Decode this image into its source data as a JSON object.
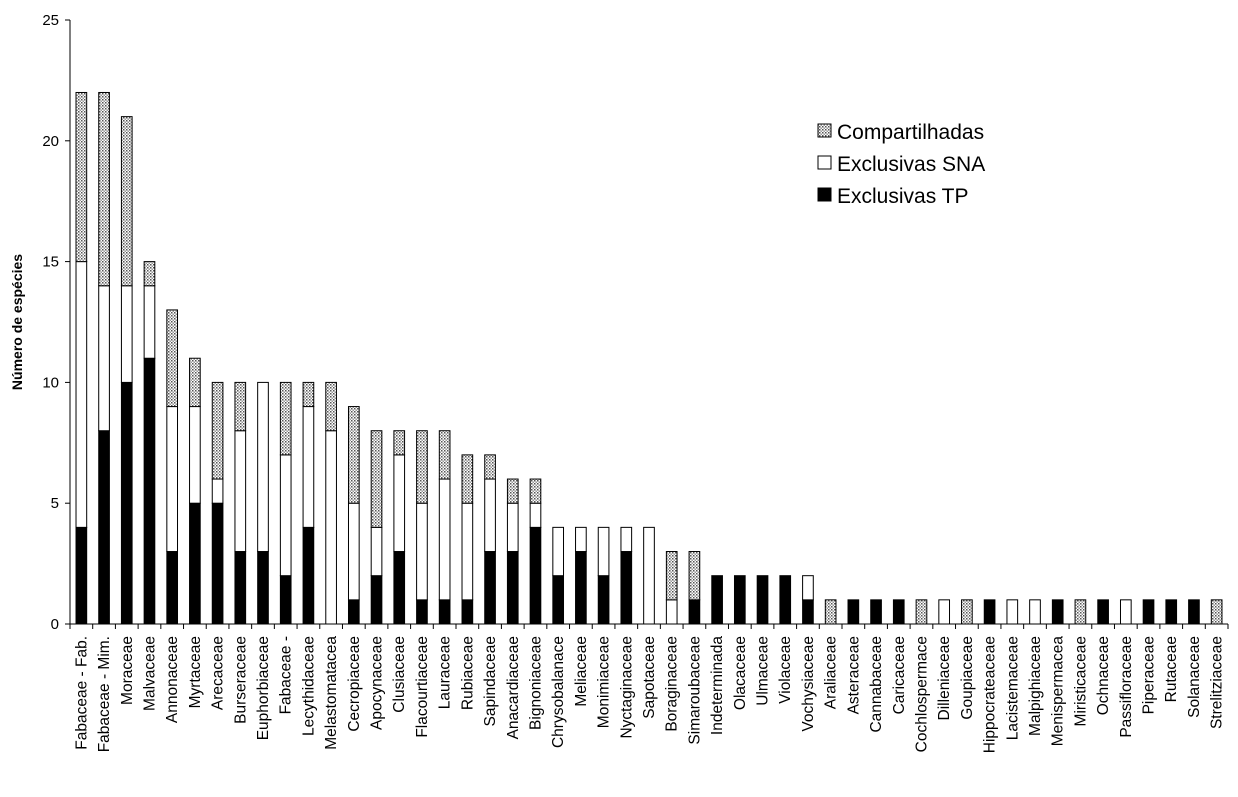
{
  "chart_data": {
    "type": "bar",
    "stacked": true,
    "ylabel": "Número de espécies",
    "xlabel": "",
    "ylim": [
      0,
      25
    ],
    "yticks": [
      0,
      5,
      10,
      15,
      20,
      25
    ],
    "legend_position": "top-right",
    "categories": [
      "Fabaceae - Fab.",
      "Fabaceae - Mim.",
      "Moraceae",
      "Malvaceae",
      "Annonaceae",
      "Myrtaceae",
      "Arecaceae",
      "Burseraceae",
      "Euphorbiaceae",
      "Fabaceae -",
      "Lecythidaceae",
      "Melastomatacea",
      "Cecropiaceae",
      "Apocynaceae",
      "Clusiaceae",
      "Flacourtiaceae",
      "Lauraceae",
      "Rubiaceae",
      "Sapindaceae",
      "Anacardiaceae",
      "Bignoniaceae",
      "Chrysobalanace",
      "Meliaceae",
      "Monimiaceae",
      "Nyctaginaceae",
      "Sapotaceae",
      "Boraginaceae",
      "Simaroubaceae",
      "Indeterminada",
      "Olacaceae",
      "Ulmaceae",
      "Violaceae",
      "Vochysiaceae",
      "Araliaceae",
      "Asteraceae",
      "Cannabaceae",
      "Caricaceae",
      "Cochlospermace",
      "Dilleniaceae",
      "Goupiaceae",
      "Hippocrateaceae",
      "Lacistemaceae",
      "Malpighiaceae",
      "Menispermacea",
      "Miristicaceae",
      "Ochnaceae",
      "Passifloraceae",
      "Piperaceae",
      "Rutaceae",
      "Solanaceae",
      "Strelitziaceae"
    ],
    "series": [
      {
        "name": "Exclusivas TP",
        "color": "#000000",
        "pattern": "solid",
        "values": [
          4,
          8,
          10,
          11,
          3,
          5,
          5,
          3,
          3,
          2,
          4,
          0,
          1,
          2,
          3,
          1,
          1,
          1,
          3,
          3,
          4,
          2,
          3,
          2,
          3,
          0,
          0,
          1,
          2,
          2,
          2,
          2,
          1,
          0,
          1,
          1,
          1,
          0,
          0,
          0,
          1,
          0,
          0,
          1,
          0,
          1,
          0,
          1,
          1,
          1,
          0
        ]
      },
      {
        "name": "Exclusivas SNA",
        "color": "#ffffff",
        "pattern": "none",
        "values": [
          11,
          6,
          4,
          3,
          6,
          4,
          1,
          5,
          7,
          5,
          5,
          8,
          4,
          2,
          4,
          4,
          5,
          4,
          3,
          2,
          1,
          2,
          1,
          2,
          1,
          4,
          1,
          0,
          0,
          0,
          0,
          0,
          1,
          0,
          0,
          0,
          0,
          0,
          1,
          0,
          0,
          1,
          1,
          0,
          0,
          0,
          1,
          0,
          0,
          0,
          0
        ]
      },
      {
        "name": "Compartilhadas",
        "color": "#bdbdbd",
        "pattern": "dotted",
        "values": [
          7,
          8,
          7,
          1,
          4,
          2,
          4,
          2,
          0,
          3,
          1,
          2,
          4,
          4,
          1,
          3,
          2,
          2,
          1,
          1,
          1,
          0,
          0,
          0,
          0,
          0,
          2,
          2,
          0,
          0,
          0,
          0,
          0,
          1,
          0,
          0,
          0,
          1,
          0,
          1,
          0,
          0,
          0,
          0,
          1,
          0,
          0,
          0,
          0,
          0,
          1
        ]
      }
    ],
    "legend_order": [
      "Compartilhadas",
      "Exclusivas SNA",
      "Exclusivas TP"
    ]
  }
}
